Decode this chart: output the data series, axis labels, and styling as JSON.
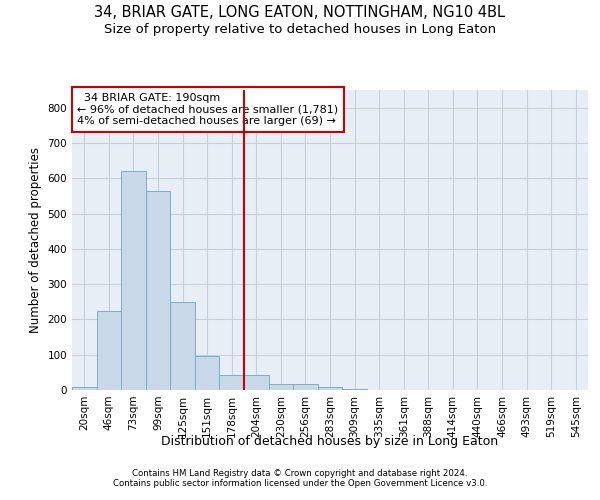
{
  "title1": "34, BRIAR GATE, LONG EATON, NOTTINGHAM, NG10 4BL",
  "title2": "Size of property relative to detached houses in Long Eaton",
  "xlabel": "Distribution of detached houses by size in Long Eaton",
  "ylabel": "Number of detached properties",
  "footer1": "Contains HM Land Registry data © Crown copyright and database right 2024.",
  "footer2": "Contains public sector information licensed under the Open Government Licence v3.0.",
  "bar_labels": [
    "20sqm",
    "46sqm",
    "73sqm",
    "99sqm",
    "125sqm",
    "151sqm",
    "178sqm",
    "204sqm",
    "230sqm",
    "256sqm",
    "283sqm",
    "309sqm",
    "335sqm",
    "361sqm",
    "388sqm",
    "414sqm",
    "440sqm",
    "466sqm",
    "493sqm",
    "519sqm",
    "545sqm"
  ],
  "bar_values": [
    8,
    225,
    620,
    565,
    250,
    95,
    42,
    42,
    17,
    17,
    8,
    2,
    0,
    0,
    0,
    0,
    0,
    0,
    0,
    0,
    0
  ],
  "bar_color": "#c8d8e8",
  "bar_edge_color": "#7aafc8",
  "vline_x": 6.5,
  "vline_color": "#cc0000",
  "annotation_text": "  34 BRIAR GATE: 190sqm  \n← 96% of detached houses are smaller (1,781)\n4% of semi-detached houses are larger (69) →",
  "annotation_box_color": "#ffffff",
  "annotation_box_edge": "#cc0000",
  "ylim": [
    0,
    850
  ],
  "yticks": [
    0,
    100,
    200,
    300,
    400,
    500,
    600,
    700,
    800
  ],
  "bg_color": "#e8eef5",
  "plot_bg": "#ffffff",
  "grid_color": "#c5d0de",
  "title_fontsize": 10.5,
  "subtitle_fontsize": 9.5,
  "annotation_fontsize": 8.0,
  "ylabel_fontsize": 8.5,
  "xlabel_fontsize": 9.0,
  "tick_fontsize": 7.5
}
